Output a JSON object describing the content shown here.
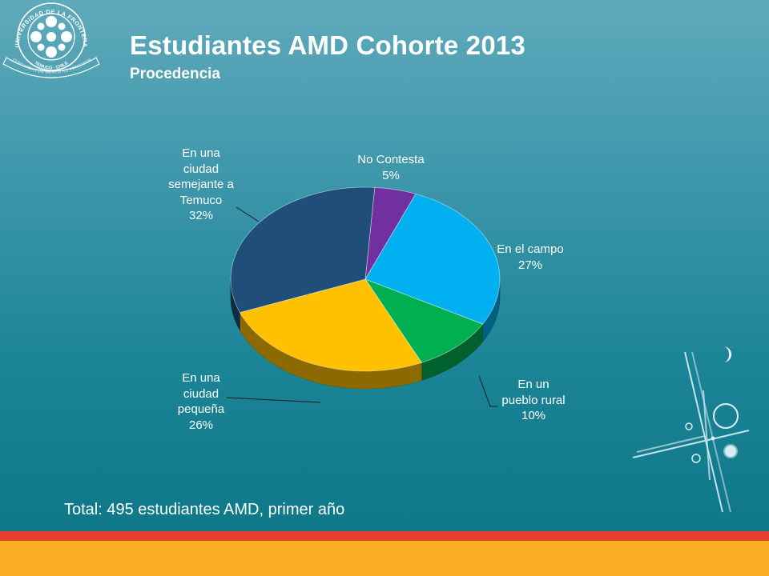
{
  "slide": {
    "title": "Estudiantes AMD Cohorte 2013",
    "subtitle": "Procedencia",
    "footer_note": "Total: 495 estudiantes AMD, primer año"
  },
  "logo": {
    "text_top": "UNIVERSIDAD DE LA FRONTERA",
    "text_city": "TEMUCO · CHILE",
    "motto": "FVNDAMENTUM MENTIS AD VERITATEM"
  },
  "chart_data": {
    "type": "pie",
    "title": "",
    "slices": [
      {
        "label": "No Contesta",
        "value": 5,
        "value_label": "5%",
        "color": "#7030a0"
      },
      {
        "label": "En el campo",
        "value": 27,
        "value_label": "27%",
        "color": "#00b0f0"
      },
      {
        "label": "En un pueblo rural",
        "value": 10,
        "value_label": "10%",
        "color": "#00b050"
      },
      {
        "label": "En una ciudad pequeña",
        "value": 26,
        "value_label": "26%",
        "color": "#ffc000"
      },
      {
        "label": "En una ciudad semejante a Temuco",
        "value": 32,
        "value_label": "32%",
        "color": "#1f4e79"
      }
    ],
    "label_lines": {
      "No Contesta": [
        "No Contesta",
        "5%"
      ],
      "En el campo": [
        "En el campo",
        "27%"
      ],
      "En un pueblo rural": [
        "En un",
        "pueblo rural",
        "10%"
      ],
      "En una ciudad pequeña": [
        "En una",
        "ciudad",
        "pequeña",
        "26%"
      ],
      "En una ciudad semejante a Temuco": [
        "En una",
        "ciudad",
        "semejante a",
        "Temuco",
        "32%"
      ]
    },
    "style": "3d-tilted",
    "legend": "none"
  },
  "colors": {
    "background_top": "#5eaabb",
    "background_bottom": "#0b7586",
    "band_red": "#e2402b",
    "band_orange": "#f9ad25"
  }
}
